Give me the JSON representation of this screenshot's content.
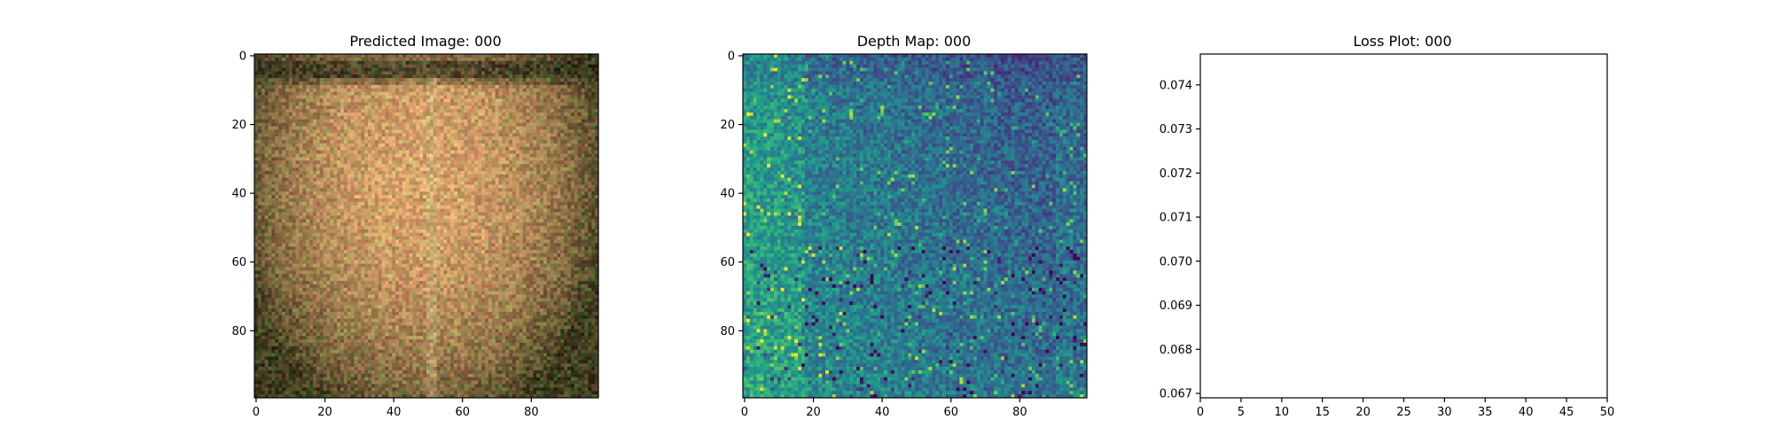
{
  "chart_data": [
    {
      "type": "heatmap",
      "title": "Predicted Image: 000",
      "image_size": [
        100,
        100
      ],
      "colormap": "rgb",
      "x_ticks": [
        0,
        20,
        40,
        60,
        80
      ],
      "y_ticks": [
        0,
        20,
        40,
        60,
        80
      ],
      "xlim": [
        0,
        99
      ],
      "ylim": [
        99,
        0
      ],
      "colors": {
        "edge_dark": "#3f3a1f",
        "center_warm": "#d6a06a",
        "top_band": "#2b2a18",
        "streak": "#c9b27a"
      }
    },
    {
      "type": "heatmap",
      "title": "Depth Map: 000",
      "image_size": [
        100,
        100
      ],
      "colormap": "viridis",
      "x_ticks": [
        0,
        20,
        40,
        60,
        80
      ],
      "y_ticks": [
        0,
        20,
        40,
        60,
        80
      ],
      "xlim": [
        0,
        99
      ],
      "ylim": [
        99,
        0
      ]
    },
    {
      "type": "line",
      "title": "Loss Plot: 000",
      "x": [],
      "values": [],
      "xlim": [
        0,
        50
      ],
      "ylim": [
        0.0669,
        0.0747
      ],
      "x_ticks": [
        0,
        5,
        10,
        15,
        20,
        25,
        30,
        35,
        40,
        45,
        50
      ],
      "y_ticks": [
        "0.067",
        "0.068",
        "0.069",
        "0.070",
        "0.071",
        "0.072",
        "0.073",
        "0.074"
      ],
      "grid": false
    }
  ]
}
